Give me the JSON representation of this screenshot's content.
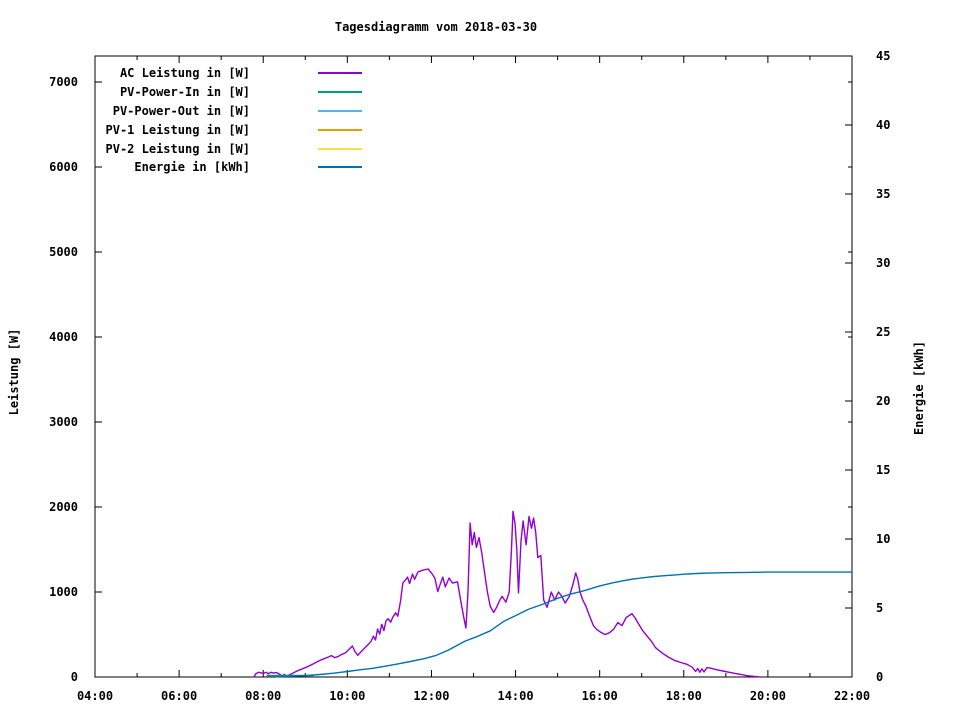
{
  "title": "Tagesdiagramm vom 2018-03-30",
  "axes": {
    "x": {
      "ticks": [
        {
          "h": 4,
          "label": "04:00"
        },
        {
          "h": 6,
          "label": "06:00"
        },
        {
          "h": 8,
          "label": "08:00"
        },
        {
          "h": 10,
          "label": "10:00"
        },
        {
          "h": 12,
          "label": "12:00"
        },
        {
          "h": 14,
          "label": "14:00"
        },
        {
          "h": 16,
          "label": "16:00"
        },
        {
          "h": 18,
          "label": "18:00"
        },
        {
          "h": 20,
          "label": "20:00"
        },
        {
          "h": 22,
          "label": "22:00"
        }
      ],
      "minor_hours": [
        5,
        7,
        9,
        11,
        13,
        15,
        17,
        19,
        21
      ],
      "range_hours": [
        4,
        22
      ]
    },
    "y_left": {
      "label": "Leistung [W]",
      "ticks": [
        {
          "v": 0,
          "label": "0"
        },
        {
          "v": 1000,
          "label": "1000"
        },
        {
          "v": 2000,
          "label": "2000"
        },
        {
          "v": 3000,
          "label": "3000"
        },
        {
          "v": 4000,
          "label": "4000"
        },
        {
          "v": 5000,
          "label": "5000"
        },
        {
          "v": 6000,
          "label": "6000"
        },
        {
          "v": 7000,
          "label": "7000"
        }
      ],
      "range": [
        0,
        7300
      ]
    },
    "y_right": {
      "label": "Energie [kWh]",
      "ticks": [
        {
          "v": 0,
          "label": "0"
        },
        {
          "v": 5,
          "label": "5"
        },
        {
          "v": 10,
          "label": "10"
        },
        {
          "v": 15,
          "label": "15"
        },
        {
          "v": 20,
          "label": "20"
        },
        {
          "v": 25,
          "label": "25"
        },
        {
          "v": 30,
          "label": "30"
        },
        {
          "v": 35,
          "label": "35"
        },
        {
          "v": 40,
          "label": "40"
        },
        {
          "v": 45,
          "label": "45"
        }
      ],
      "range": [
        0,
        45
      ]
    }
  },
  "chart_data": {
    "type": "line",
    "title": "Tagesdiagramm vom 2018-03-30",
    "xlabel": "",
    "x_unit": "time (HH:MM)",
    "ylabel_left": "Leistung [W]",
    "ylabel_right": "Energie [kWh]",
    "x_range_hours": [
      4,
      22
    ],
    "y_left_range": [
      0,
      7300
    ],
    "y_right_range": [
      0,
      45
    ],
    "grid": false,
    "legend_position": "top-left-inside",
    "series": [
      {
        "name": "AC Leistung in [W]",
        "color": "#9400d3",
        "axis": "left",
        "points": [
          [
            7.78,
            0
          ],
          [
            7.82,
            35
          ],
          [
            7.88,
            55
          ],
          [
            7.95,
            50
          ],
          [
            8.0,
            42
          ],
          [
            8.07,
            55
          ],
          [
            8.12,
            38
          ],
          [
            8.18,
            55
          ],
          [
            8.25,
            48
          ],
          [
            8.32,
            52
          ],
          [
            8.4,
            30
          ],
          [
            8.45,
            12
          ],
          [
            8.5,
            32
          ],
          [
            8.55,
            8
          ],
          [
            8.62,
            25
          ],
          [
            8.7,
            45
          ],
          [
            8.78,
            65
          ],
          [
            8.85,
            80
          ],
          [
            8.95,
            100
          ],
          [
            9.05,
            120
          ],
          [
            9.15,
            145
          ],
          [
            9.25,
            170
          ],
          [
            9.35,
            195
          ],
          [
            9.45,
            215
          ],
          [
            9.55,
            235
          ],
          [
            9.62,
            252
          ],
          [
            9.7,
            228
          ],
          [
            9.78,
            240
          ],
          [
            9.85,
            262
          ],
          [
            9.95,
            282
          ],
          [
            10.05,
            330
          ],
          [
            10.12,
            365
          ],
          [
            10.18,
            300
          ],
          [
            10.25,
            255
          ],
          [
            10.33,
            300
          ],
          [
            10.42,
            345
          ],
          [
            10.5,
            385
          ],
          [
            10.57,
            425
          ],
          [
            10.62,
            480
          ],
          [
            10.67,
            435
          ],
          [
            10.72,
            565
          ],
          [
            10.77,
            505
          ],
          [
            10.82,
            620
          ],
          [
            10.87,
            545
          ],
          [
            10.92,
            660
          ],
          [
            10.97,
            685
          ],
          [
            11.03,
            645
          ],
          [
            11.08,
            705
          ],
          [
            11.15,
            755
          ],
          [
            11.2,
            715
          ],
          [
            11.27,
            905
          ],
          [
            11.32,
            1105
          ],
          [
            11.38,
            1140
          ],
          [
            11.43,
            1175
          ],
          [
            11.48,
            1100
          ],
          [
            11.55,
            1210
          ],
          [
            11.6,
            1150
          ],
          [
            11.68,
            1235
          ],
          [
            11.78,
            1255
          ],
          [
            11.92,
            1270
          ],
          [
            12.0,
            1225
          ],
          [
            12.08,
            1165
          ],
          [
            12.15,
            1005
          ],
          [
            12.2,
            1080
          ],
          [
            12.27,
            1175
          ],
          [
            12.33,
            1060
          ],
          [
            12.42,
            1165
          ],
          [
            12.5,
            1105
          ],
          [
            12.62,
            1120
          ],
          [
            12.7,
            885
          ],
          [
            12.77,
            700
          ],
          [
            12.82,
            575
          ],
          [
            12.87,
            1000
          ],
          [
            12.92,
            1810
          ],
          [
            12.97,
            1555
          ],
          [
            13.02,
            1700
          ],
          [
            13.07,
            1525
          ],
          [
            13.13,
            1640
          ],
          [
            13.2,
            1450
          ],
          [
            13.27,
            1200
          ],
          [
            13.33,
            1000
          ],
          [
            13.4,
            830
          ],
          [
            13.48,
            760
          ],
          [
            13.55,
            820
          ],
          [
            13.62,
            900
          ],
          [
            13.68,
            950
          ],
          [
            13.77,
            880
          ],
          [
            13.85,
            1000
          ],
          [
            13.9,
            1480
          ],
          [
            13.94,
            1950
          ],
          [
            13.99,
            1800
          ],
          [
            14.03,
            1500
          ],
          [
            14.07,
            990
          ],
          [
            14.13,
            1600
          ],
          [
            14.18,
            1835
          ],
          [
            14.25,
            1555
          ],
          [
            14.32,
            1890
          ],
          [
            14.38,
            1750
          ],
          [
            14.43,
            1870
          ],
          [
            14.48,
            1705
          ],
          [
            14.53,
            1405
          ],
          [
            14.6,
            1430
          ],
          [
            14.67,
            905
          ],
          [
            14.75,
            820
          ],
          [
            14.85,
            1000
          ],
          [
            14.93,
            905
          ],
          [
            15.02,
            1000
          ],
          [
            15.1,
            950
          ],
          [
            15.18,
            870
          ],
          [
            15.28,
            950
          ],
          [
            15.37,
            1100
          ],
          [
            15.43,
            1225
          ],
          [
            15.48,
            1150
          ],
          [
            15.53,
            1005
          ],
          [
            15.6,
            905
          ],
          [
            15.67,
            835
          ],
          [
            15.77,
            705
          ],
          [
            15.85,
            605
          ],
          [
            15.93,
            560
          ],
          [
            16.03,
            525
          ],
          [
            16.13,
            500
          ],
          [
            16.23,
            520
          ],
          [
            16.33,
            560
          ],
          [
            16.43,
            640
          ],
          [
            16.53,
            605
          ],
          [
            16.63,
            700
          ],
          [
            16.77,
            745
          ],
          [
            16.85,
            690
          ],
          [
            16.93,
            620
          ],
          [
            17.03,
            540
          ],
          [
            17.13,
            480
          ],
          [
            17.23,
            420
          ],
          [
            17.33,
            345
          ],
          [
            17.48,
            285
          ],
          [
            17.63,
            235
          ],
          [
            17.78,
            195
          ],
          [
            17.93,
            170
          ],
          [
            18.08,
            150
          ],
          [
            18.2,
            115
          ],
          [
            18.28,
            65
          ],
          [
            18.33,
            100
          ],
          [
            18.38,
            55
          ],
          [
            18.43,
            95
          ],
          [
            18.48,
            60
          ],
          [
            18.55,
            110
          ],
          [
            18.63,
            105
          ],
          [
            18.73,
            92
          ],
          [
            18.83,
            80
          ],
          [
            18.93,
            70
          ],
          [
            19.08,
            55
          ],
          [
            19.22,
            42
          ],
          [
            19.37,
            28
          ],
          [
            19.5,
            15
          ],
          [
            19.65,
            8
          ],
          [
            19.8,
            2
          ]
        ]
      },
      {
        "name": "PV-Power-In in [W]",
        "color": "#009e73",
        "axis": "left",
        "points": [
          [
            8.08,
            18
          ],
          [
            9.2,
            18
          ]
        ]
      },
      {
        "name": "PV-Power-Out in [W]",
        "color": "#56b4e9",
        "axis": "left",
        "points": []
      },
      {
        "name": "PV-1 Leistung in [W]",
        "color": "#e69f00",
        "axis": "left",
        "points": []
      },
      {
        "name": "PV-2 Leistung in [W]",
        "color": "#f0e442",
        "axis": "left",
        "points": []
      },
      {
        "name": "Energie in [kWh]",
        "color": "#0072b2",
        "axis": "right",
        "points": [
          [
            8.3,
            0.02
          ],
          [
            8.6,
            0.05
          ],
          [
            9.0,
            0.1
          ],
          [
            9.35,
            0.18
          ],
          [
            9.7,
            0.28
          ],
          [
            10.0,
            0.4
          ],
          [
            10.3,
            0.52
          ],
          [
            10.6,
            0.63
          ],
          [
            10.9,
            0.78
          ],
          [
            11.2,
            0.95
          ],
          [
            11.5,
            1.12
          ],
          [
            11.85,
            1.35
          ],
          [
            12.1,
            1.55
          ],
          [
            12.4,
            1.95
          ],
          [
            12.8,
            2.6
          ],
          [
            13.1,
            2.95
          ],
          [
            13.4,
            3.35
          ],
          [
            13.73,
            4.05
          ],
          [
            14.0,
            4.45
          ],
          [
            14.3,
            4.9
          ],
          [
            14.67,
            5.3
          ],
          [
            15.0,
            5.7
          ],
          [
            15.3,
            6.0
          ],
          [
            15.62,
            6.25
          ],
          [
            16.0,
            6.6
          ],
          [
            16.3,
            6.82
          ],
          [
            16.55,
            6.97
          ],
          [
            16.8,
            7.1
          ],
          [
            17.0,
            7.18
          ],
          [
            17.3,
            7.28
          ],
          [
            17.5,
            7.33
          ],
          [
            17.8,
            7.4
          ],
          [
            18.0,
            7.45
          ],
          [
            18.3,
            7.5
          ],
          [
            18.6,
            7.53
          ],
          [
            19.0,
            7.56
          ],
          [
            19.5,
            7.58
          ],
          [
            20.0,
            7.6
          ],
          [
            21.0,
            7.6
          ],
          [
            22.0,
            7.6
          ]
        ]
      }
    ]
  }
}
